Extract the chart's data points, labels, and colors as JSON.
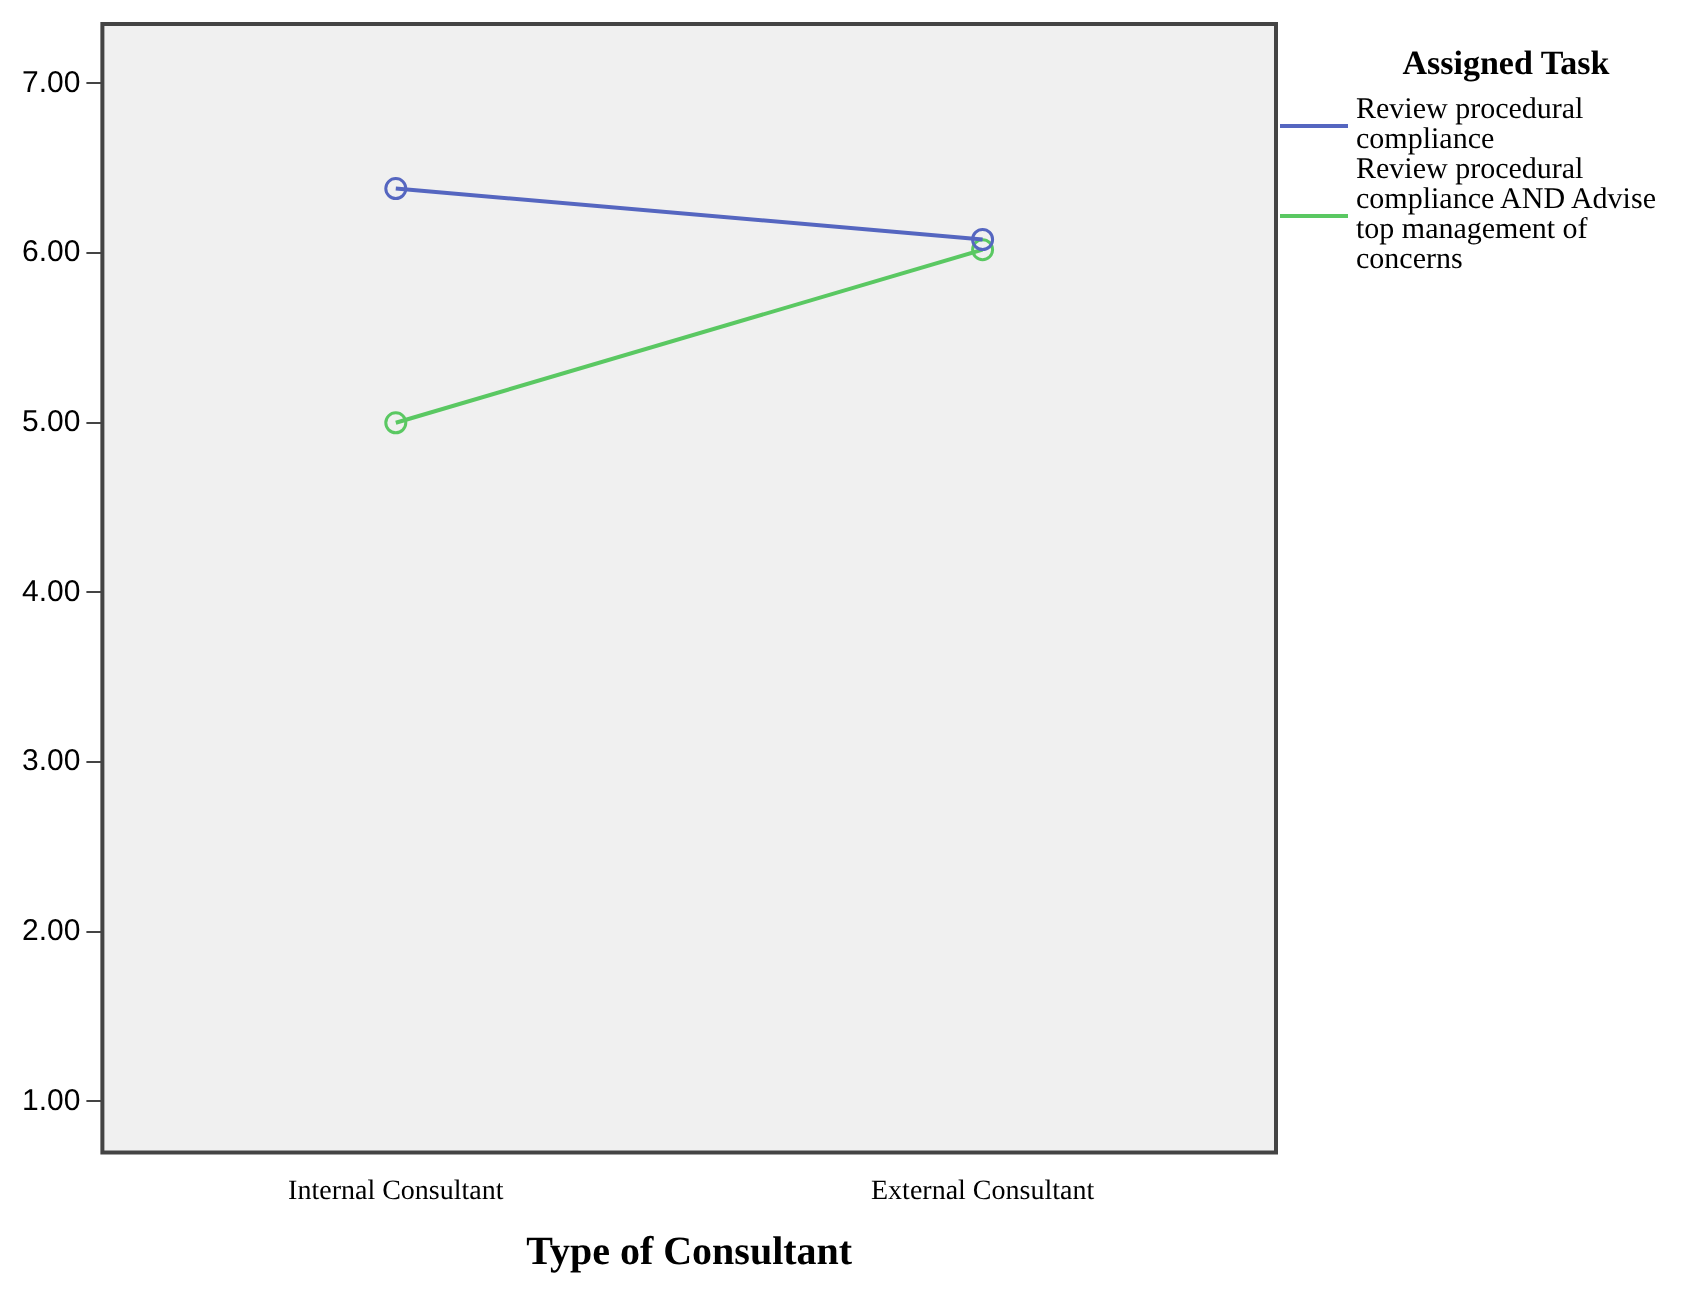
{
  "chart_data": {
    "type": "line",
    "xlabel": "Type of Consultant",
    "legend_title": "Assigned Task",
    "legend": "right",
    "marker": "circle",
    "grid": false,
    "categories": [
      "Internal Consultant",
      "External Consultant"
    ],
    "series": [
      {
        "name": "Review procedural compliance",
        "color": "#5566c0",
        "values": [
          6.38,
          6.08
        ]
      },
      {
        "name": "Review procedural compliance AND Advise top management of concerns",
        "color": "#5ac862",
        "values": [
          5.0,
          6.02
        ]
      }
    ],
    "ylim": [
      0.7,
      7.35
    ],
    "yticks": [
      {
        "value": 1,
        "label": "1.00"
      },
      {
        "value": 2,
        "label": "2.00"
      },
      {
        "value": 3,
        "label": "3.00"
      },
      {
        "value": 4,
        "label": "4.00"
      },
      {
        "value": 5,
        "label": "5.00"
      },
      {
        "value": 6,
        "label": "6.00"
      },
      {
        "value": 7,
        "label": "7.00"
      }
    ]
  }
}
